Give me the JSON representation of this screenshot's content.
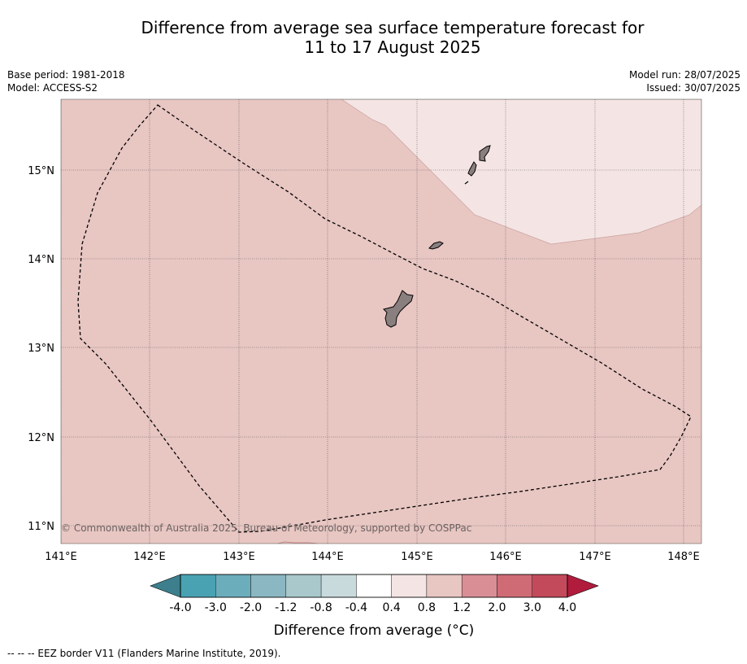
{
  "title": {
    "line1": "Difference from average sea surface temperature forecast for",
    "line2": "11 to 17 August 2025"
  },
  "meta": {
    "base_period": "Base period: 1981-2018",
    "model": "Model: ACCESS-S2",
    "model_run": "Model run: 28/07/2025",
    "issued": "Issued: 30/07/2025"
  },
  "map": {
    "lon_labels": [
      "141°E",
      "142°E",
      "143°E",
      "144°E",
      "145°E",
      "146°E",
      "147°E",
      "148°E"
    ],
    "lat_labels": [
      "11°N",
      "12°N",
      "13°N",
      "14°N",
      "15°N"
    ],
    "copyright": "© Commonwealth of Australia 2025, Bureau of Meteorology, supported by COSPPac",
    "colors": {
      "anomaly_04_08": "#f4e5e4",
      "anomaly_08_12": "#e8c6c2",
      "land": "#8a7f7f"
    }
  },
  "colorbar": {
    "ticks": [
      "-4.0",
      "-3.0",
      "-2.0",
      "-1.2",
      "-0.8",
      "-0.4",
      "0.4",
      "0.8",
      "1.2",
      "2.0",
      "3.0",
      "4.0"
    ],
    "colors": [
      "#49a2b2",
      "#6cadbc",
      "#8ab7c2",
      "#a9c8cb",
      "#c9dadd",
      "#ffffff",
      "#f4e5e4",
      "#e8c6c2",
      "#d98e96",
      "#cf6b75",
      "#c34a5b"
    ],
    "under_color": "#3d7f8c",
    "over_color": "#b11c3c",
    "label": "Difference from average (°C)"
  },
  "footnote": "-- -- -- EEZ border V11 (Flanders Marine Institute, 2019)."
}
